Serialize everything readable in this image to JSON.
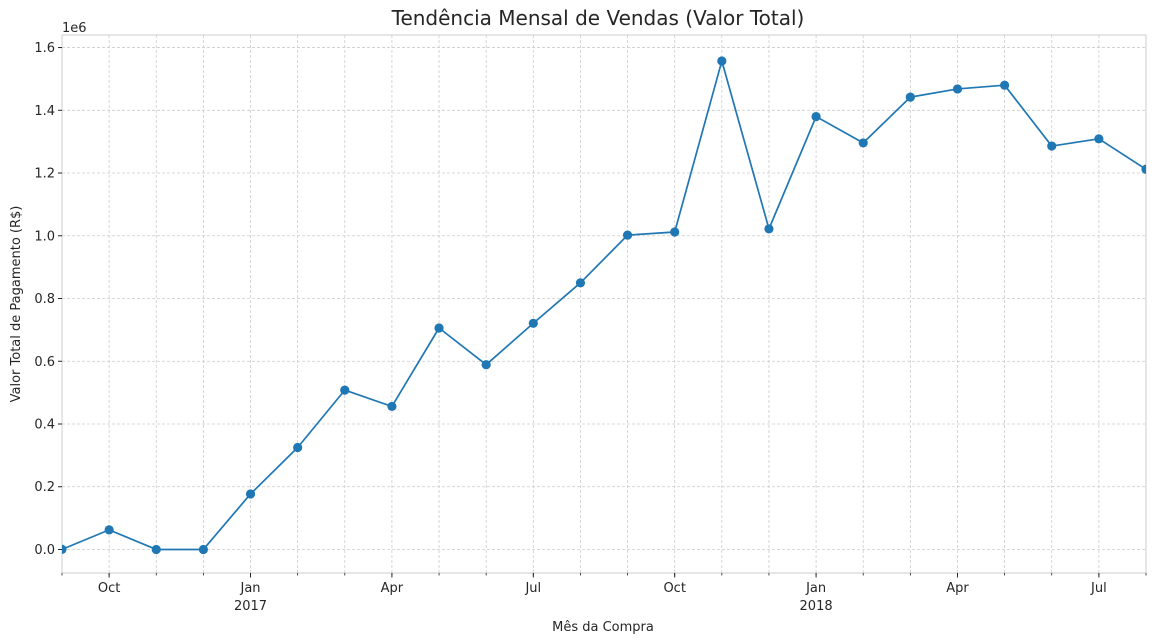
{
  "chart_data": {
    "type": "line",
    "title": "Tendência Mensal de Vendas (Valor Total)",
    "xlabel": "Mês da Compra",
    "ylabel": "Valor Total de Pagamento (R$)",
    "y_offset_text": "1e6",
    "ylim": [
      -0.075,
      1.64
    ],
    "y_unit_multiplier": 1000000,
    "yticks": [
      0.0,
      0.2,
      0.4,
      0.6,
      0.8,
      1.0,
      1.2,
      1.4,
      1.6
    ],
    "ytick_labels": [
      "0.0",
      "0.2",
      "0.4",
      "0.6",
      "0.8",
      "1.0",
      "1.2",
      "1.4",
      "1.6"
    ],
    "grid": true,
    "xlim": [
      "2016-09",
      "2018-08"
    ],
    "x_ticks": [
      {
        "month": "2016-10",
        "label": "Oct",
        "sublabel": ""
      },
      {
        "month": "2017-01",
        "label": "Jan",
        "sublabel": "2017"
      },
      {
        "month": "2017-04",
        "label": "Apr",
        "sublabel": ""
      },
      {
        "month": "2017-07",
        "label": "Jul",
        "sublabel": ""
      },
      {
        "month": "2017-10",
        "label": "Oct",
        "sublabel": ""
      },
      {
        "month": "2018-01",
        "label": "Jan",
        "sublabel": "2018"
      },
      {
        "month": "2018-04",
        "label": "Apr",
        "sublabel": ""
      },
      {
        "month": "2018-07",
        "label": "Jul",
        "sublabel": ""
      }
    ],
    "series": [
      {
        "color": "#1f77b4",
        "x": [
          "2016-09",
          "2016-10",
          "2016-11",
          "2016-12",
          "2017-01",
          "2017-02",
          "2017-03",
          "2017-04",
          "2017-05",
          "2017-06",
          "2017-07",
          "2017-08",
          "2017-09",
          "2017-10",
          "2017-11",
          "2017-12",
          "2018-01",
          "2018-02",
          "2018-03",
          "2018-04",
          "2018-05",
          "2018-06",
          "2018-07",
          "2018-08"
        ],
        "values": [
          0.0003,
          0.0625,
          0.0,
          2e-05,
          0.177,
          0.325,
          0.508,
          0.456,
          0.706,
          0.589,
          0.721,
          0.85,
          1.002,
          1.012,
          1.557,
          1.022,
          1.38,
          1.296,
          1.442,
          1.468,
          1.48,
          1.286,
          1.309,
          1.212
        ]
      }
    ]
  }
}
